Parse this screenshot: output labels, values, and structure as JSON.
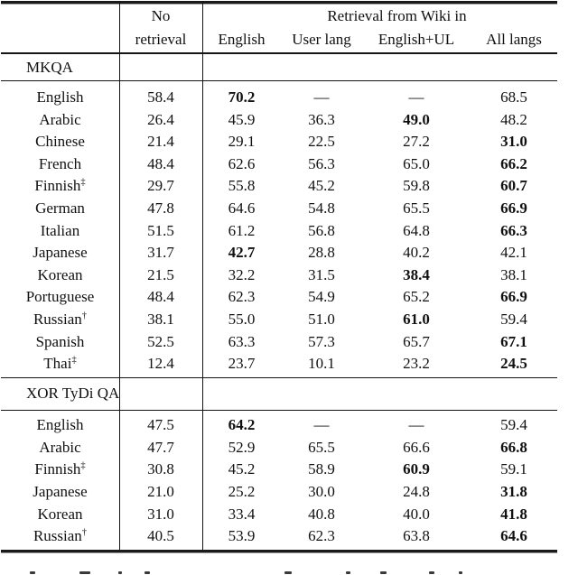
{
  "table": {
    "header": {
      "no_retrieval": [
        "No",
        "retrieval"
      ],
      "group_title": "Retrieval from Wiki in",
      "columns": [
        "English",
        "User lang",
        "English+UL",
        "All langs"
      ]
    },
    "sections": [
      {
        "label": "MKQA",
        "rows": [
          {
            "lang": "English",
            "sup": "",
            "no_retrieval": "58.4",
            "values": [
              "70.2",
              "—",
              "—",
              "68.5"
            ],
            "bold": 0
          },
          {
            "lang": "Arabic",
            "sup": "",
            "no_retrieval": "26.4",
            "values": [
              "45.9",
              "36.3",
              "49.0",
              "48.2"
            ],
            "bold": 2
          },
          {
            "lang": "Chinese",
            "sup": "",
            "no_retrieval": "21.4",
            "values": [
              "29.1",
              "22.5",
              "27.2",
              "31.0"
            ],
            "bold": 3
          },
          {
            "lang": "French",
            "sup": "",
            "no_retrieval": "48.4",
            "values": [
              "62.6",
              "56.3",
              "65.0",
              "66.2"
            ],
            "bold": 3
          },
          {
            "lang": "Finnish",
            "sup": "‡",
            "no_retrieval": "29.7",
            "values": [
              "55.8",
              "45.2",
              "59.8",
              "60.7"
            ],
            "bold": 3
          },
          {
            "lang": "German",
            "sup": "",
            "no_retrieval": "47.8",
            "values": [
              "64.6",
              "54.8",
              "65.5",
              "66.9"
            ],
            "bold": 3
          },
          {
            "lang": "Italian",
            "sup": "",
            "no_retrieval": "51.5",
            "values": [
              "61.2",
              "56.8",
              "64.8",
              "66.3"
            ],
            "bold": 3
          },
          {
            "lang": "Japanese",
            "sup": "",
            "no_retrieval": "31.7",
            "values": [
              "42.7",
              "28.8",
              "40.2",
              "42.1"
            ],
            "bold": 0
          },
          {
            "lang": "Korean",
            "sup": "",
            "no_retrieval": "21.5",
            "values": [
              "32.2",
              "31.5",
              "38.4",
              "38.1"
            ],
            "bold": 2
          },
          {
            "lang": "Portuguese",
            "sup": "",
            "no_retrieval": "48.4",
            "values": [
              "62.3",
              "54.9",
              "65.2",
              "66.9"
            ],
            "bold": 3
          },
          {
            "lang": "Russian",
            "sup": "†",
            "no_retrieval": "38.1",
            "values": [
              "55.0",
              "51.0",
              "61.0",
              "59.4"
            ],
            "bold": 2
          },
          {
            "lang": "Spanish",
            "sup": "",
            "no_retrieval": "52.5",
            "values": [
              "63.3",
              "57.3",
              "65.7",
              "67.1"
            ],
            "bold": 3
          },
          {
            "lang": "Thai",
            "sup": "‡",
            "no_retrieval": "12.4",
            "values": [
              "23.7",
              "10.1",
              "23.2",
              "24.5"
            ],
            "bold": 3
          }
        ]
      },
      {
        "label": "XOR TyDi QA",
        "rows": [
          {
            "lang": "English",
            "sup": "",
            "no_retrieval": "47.5",
            "values": [
              "64.2",
              "—",
              "—",
              "59.4"
            ],
            "bold": 0
          },
          {
            "lang": "Arabic",
            "sup": "",
            "no_retrieval": "47.7",
            "values": [
              "52.9",
              "65.5",
              "66.6",
              "66.8"
            ],
            "bold": 3
          },
          {
            "lang": "Finnish",
            "sup": "‡",
            "no_retrieval": "30.8",
            "values": [
              "45.2",
              "58.9",
              "60.9",
              "59.1"
            ],
            "bold": 2
          },
          {
            "lang": "Japanese",
            "sup": "",
            "no_retrieval": "21.0",
            "values": [
              "25.2",
              "30.0",
              "24.8",
              "31.8"
            ],
            "bold": 3
          },
          {
            "lang": "Korean",
            "sup": "",
            "no_retrieval": "31.0",
            "values": [
              "33.4",
              "40.8",
              "40.0",
              "41.8"
            ],
            "bold": 3
          },
          {
            "lang": "Russian",
            "sup": "†",
            "no_retrieval": "40.5",
            "values": [
              "53.9",
              "62.3",
              "63.8",
              "64.6"
            ],
            "bold": 3
          }
        ]
      }
    ]
  },
  "colors": {
    "text": "#111111",
    "rule": "#151515",
    "background": "#ffffff"
  }
}
